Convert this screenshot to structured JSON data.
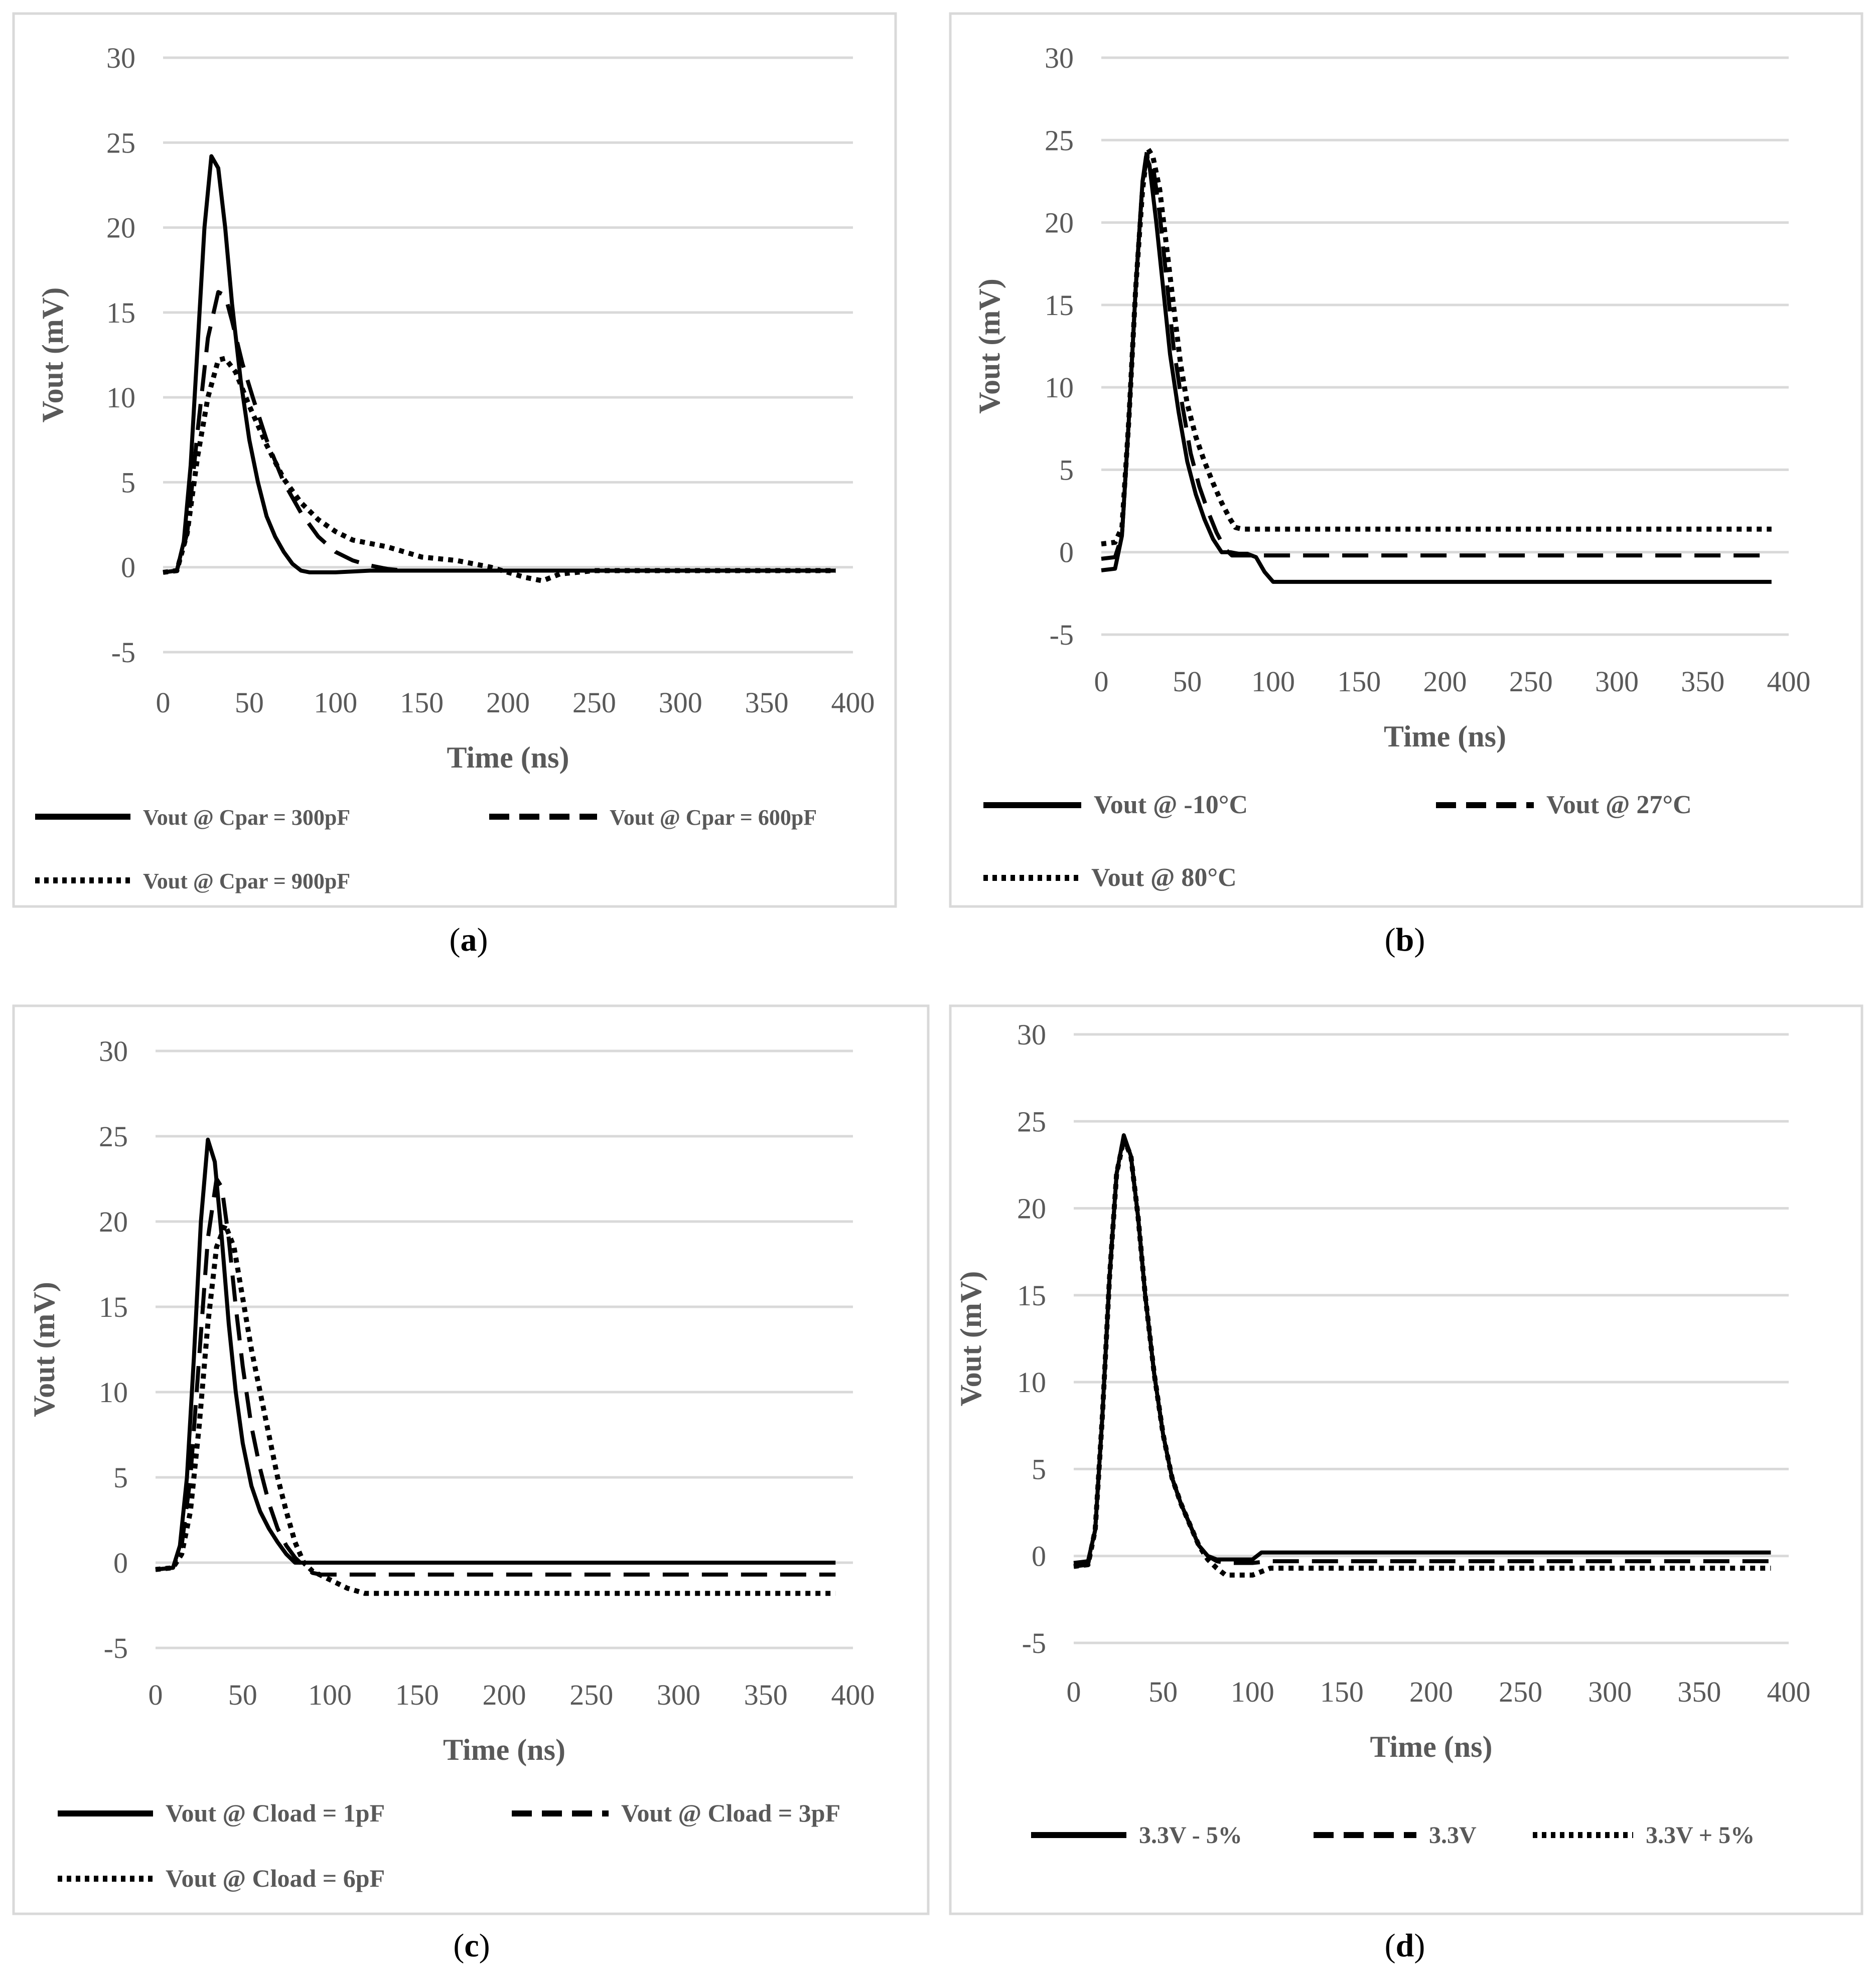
{
  "figure": {
    "panels": [
      {
        "label": "a",
        "label_text": "(a)"
      },
      {
        "label": "b",
        "label_text": "(b)"
      },
      {
        "label": "c",
        "label_text": "(c)"
      },
      {
        "label": "d",
        "label_text": "(d)"
      }
    ]
  },
  "colors": {
    "series": "#000000",
    "grid": "#d9d9d9",
    "axis_text": "#595959",
    "frame": "#d9d9d9",
    "background": "#ffffff"
  },
  "chart_data": [
    {
      "panel": "a",
      "type": "line",
      "xlabel": "Time (ns)",
      "ylabel": "Vout (mV)",
      "xlim": [
        0,
        400
      ],
      "ylim": [
        -5,
        30
      ],
      "xticks": [
        0,
        50,
        100,
        150,
        200,
        250,
        300,
        350,
        400
      ],
      "yticks": [
        -5,
        0,
        5,
        10,
        15,
        20,
        25,
        30
      ],
      "grid": true,
      "legend_position": "bottom",
      "series": [
        {
          "name": "Vout @ Cpar = 300pF",
          "style": "solid",
          "x": [
            0,
            8,
            12,
            16,
            20,
            24,
            28,
            32,
            36,
            40,
            45,
            50,
            55,
            60,
            65,
            70,
            75,
            80,
            85,
            90,
            100,
            120,
            150,
            200,
            250,
            300,
            350,
            390
          ],
          "y": [
            -0.3,
            -0.2,
            1.5,
            6,
            13,
            20,
            24.2,
            23.5,
            20,
            15.5,
            11,
            7.5,
            5,
            3,
            1.8,
            0.9,
            0.2,
            -0.2,
            -0.3,
            -0.3,
            -0.3,
            -0.2,
            -0.2,
            -0.2,
            -0.2,
            -0.2,
            -0.2,
            -0.2
          ]
        },
        {
          "name": "Vout @ Cpar = 600pF",
          "style": "dashed",
          "x": [
            0,
            8,
            14,
            20,
            26,
            32,
            36,
            40,
            46,
            52,
            60,
            70,
            80,
            90,
            100,
            110,
            120,
            130,
            140,
            150,
            170,
            200,
            250,
            300,
            350,
            390
          ],
          "y": [
            -0.3,
            -0.2,
            2,
            8,
            13.5,
            16.2,
            16,
            14.5,
            12,
            10,
            7.5,
            5,
            3.2,
            1.8,
            0.9,
            0.4,
            0.1,
            -0.1,
            -0.2,
            -0.2,
            -0.2,
            -0.2,
            -0.2,
            -0.2,
            -0.2,
            -0.2
          ]
        },
        {
          "name": "Vout @ Cpar = 900pF",
          "style": "dotted",
          "x": [
            0,
            8,
            14,
            20,
            26,
            32,
            36,
            42,
            50,
            60,
            70,
            80,
            90,
            100,
            110,
            120,
            130,
            140,
            150,
            160,
            170,
            180,
            190,
            200,
            210,
            220,
            230,
            250,
            300,
            350,
            390
          ],
          "y": [
            -0.3,
            -0.2,
            2,
            6.5,
            10,
            12.2,
            12.3,
            11.5,
            9.5,
            7.2,
            5.2,
            3.8,
            2.8,
            2.1,
            1.6,
            1.4,
            1.2,
            0.9,
            0.6,
            0.5,
            0.4,
            0.2,
            0,
            -0.3,
            -0.6,
            -0.8,
            -0.4,
            -0.2,
            -0.2,
            -0.2,
            -0.2
          ]
        }
      ]
    },
    {
      "panel": "b",
      "type": "line",
      "xlabel": "Time (ns)",
      "ylabel": "Vout (mV)",
      "xlim": [
        0,
        400
      ],
      "ylim": [
        -5,
        30
      ],
      "xticks": [
        0,
        50,
        100,
        150,
        200,
        250,
        300,
        350,
        400
      ],
      "yticks": [
        -5,
        0,
        5,
        10,
        15,
        20,
        25,
        30
      ],
      "grid": true,
      "legend_position": "bottom",
      "series": [
        {
          "name": "Vout @ -10°C",
          "style": "solid",
          "x": [
            0,
            8,
            12,
            16,
            20,
            24,
            26,
            28,
            32,
            36,
            40,
            45,
            50,
            55,
            60,
            65,
            70,
            75,
            80,
            85,
            90,
            95,
            100,
            130,
            200,
            300,
            390
          ],
          "y": [
            -1.1,
            -1.0,
            1,
            8,
            16,
            22.5,
            24,
            23.5,
            20,
            16,
            12,
            8.5,
            5.5,
            3.5,
            2,
            0.8,
            0,
            0,
            -0.1,
            -0.1,
            -0.3,
            -1.2,
            -1.8,
            -1.8,
            -1.8,
            -1.8,
            -1.8
          ]
        },
        {
          "name": "Vout @ 27°C",
          "style": "dashed",
          "x": [
            0,
            8,
            12,
            16,
            20,
            24,
            27,
            30,
            34,
            38,
            42,
            47,
            52,
            57,
            62,
            67,
            72,
            76,
            80,
            100,
            200,
            300,
            390
          ],
          "y": [
            -0.4,
            -0.3,
            1,
            8,
            16,
            22.5,
            24,
            23.5,
            20.5,
            16.5,
            12.5,
            9,
            6,
            4,
            2.5,
            1.2,
            0.2,
            -0.2,
            -0.2,
            -0.2,
            -0.2,
            -0.2,
            -0.2
          ]
        },
        {
          "name": "Vout @ 80°C",
          "style": "dotted",
          "x": [
            0,
            8,
            12,
            16,
            20,
            24,
            27,
            30,
            34,
            38,
            42,
            46,
            50,
            55,
            60,
            65,
            70,
            75,
            78,
            82,
            100,
            200,
            300,
            390
          ],
          "y": [
            0.5,
            0.6,
            1.5,
            8,
            16,
            22,
            24.5,
            24,
            22,
            18.5,
            15,
            11.5,
            9,
            7,
            5.5,
            4.2,
            3,
            2,
            1.5,
            1.4,
            1.4,
            1.4,
            1.4,
            1.4
          ]
        }
      ]
    },
    {
      "panel": "c",
      "type": "line",
      "xlabel": "Time (ns)",
      "ylabel": "Vout (mV)",
      "xlim": [
        0,
        400
      ],
      "ylim": [
        -5,
        30
      ],
      "xticks": [
        0,
        50,
        100,
        150,
        200,
        250,
        300,
        350,
        400
      ],
      "yticks": [
        -5,
        0,
        5,
        10,
        15,
        20,
        25,
        30
      ],
      "grid": true,
      "legend_position": "bottom",
      "series": [
        {
          "name": "Vout @ Cload = 1pF",
          "style": "solid",
          "x": [
            0,
            10,
            14,
            18,
            22,
            26,
            30,
            34,
            38,
            42,
            46,
            50,
            55,
            60,
            65,
            70,
            75,
            80,
            85,
            100,
            200,
            300,
            390
          ],
          "y": [
            -0.4,
            -0.3,
            1,
            5,
            12,
            20,
            24.8,
            23.5,
            19,
            14,
            10,
            7,
            4.5,
            3,
            2,
            1.2,
            0.5,
            0,
            0,
            0,
            0,
            0,
            0
          ]
        },
        {
          "name": "Vout @ Cload = 3pF",
          "style": "dashed",
          "x": [
            0,
            10,
            15,
            20,
            25,
            30,
            35,
            38,
            42,
            46,
            50,
            55,
            60,
            65,
            70,
            75,
            80,
            85,
            90,
            95,
            100,
            200,
            300,
            390
          ],
          "y": [
            -0.4,
            -0.3,
            1,
            5,
            12,
            19,
            22.5,
            22,
            19,
            15,
            11.5,
            8,
            5.5,
            3.5,
            2,
            1,
            0.3,
            -0.2,
            -0.6,
            -0.7,
            -0.7,
            -0.7,
            -0.7,
            -0.7
          ]
        },
        {
          "name": "Vout @ Cload = 6pF",
          "style": "dotted",
          "x": [
            0,
            10,
            15,
            20,
            25,
            30,
            35,
            40,
            45,
            50,
            55,
            60,
            65,
            70,
            75,
            80,
            85,
            90,
            100,
            110,
            120,
            200,
            300,
            390
          ],
          "y": [
            -0.4,
            -0.3,
            0.5,
            3,
            8,
            14,
            18.5,
            19.8,
            18.5,
            15.5,
            12.5,
            10,
            7.5,
            5,
            3,
            1.2,
            0,
            -0.5,
            -1,
            -1.5,
            -1.8,
            -1.8,
            -1.8,
            -1.8
          ]
        }
      ]
    },
    {
      "panel": "d",
      "type": "line",
      "xlabel": "Time (ns)",
      "ylabel": "Vout (mV)",
      "xlim": [
        0,
        400
      ],
      "ylim": [
        -5,
        30
      ],
      "xticks": [
        0,
        50,
        100,
        150,
        200,
        250,
        300,
        350,
        400
      ],
      "yticks": [
        -5,
        0,
        5,
        10,
        15,
        20,
        25,
        30
      ],
      "grid": true,
      "legend_position": "bottom",
      "series": [
        {
          "name": "3.3V - 5%",
          "style": "solid",
          "x": [
            0,
            8,
            12,
            16,
            20,
            24,
            28,
            32,
            36,
            40,
            45,
            50,
            55,
            60,
            65,
            70,
            75,
            80,
            85,
            100,
            105,
            110,
            200,
            300,
            390
          ],
          "y": [
            -0.4,
            -0.3,
            1.5,
            8,
            16,
            22,
            24.2,
            23,
            19.5,
            15,
            10.5,
            7,
            4.5,
            3,
            1.8,
            0.6,
            0,
            -0.2,
            -0.2,
            -0.2,
            0.2,
            0.2,
            0.2,
            0.2,
            0.2
          ]
        },
        {
          "name": "3.3V",
          "style": "dashed",
          "x": [
            0,
            8,
            12,
            16,
            20,
            24,
            28,
            32,
            36,
            40,
            45,
            50,
            55,
            60,
            65,
            70,
            75,
            80,
            85,
            100,
            110,
            200,
            300,
            390
          ],
          "y": [
            -0.6,
            -0.5,
            1.5,
            8,
            16,
            22,
            24,
            23,
            19.5,
            15,
            10.5,
            7,
            4.5,
            3,
            1.8,
            0.6,
            0,
            -0.3,
            -0.4,
            -0.4,
            -0.3,
            -0.3,
            -0.3,
            -0.3
          ]
        },
        {
          "name": "3.3V + 5%",
          "style": "dotted",
          "x": [
            0,
            8,
            12,
            16,
            20,
            24,
            28,
            32,
            36,
            40,
            45,
            50,
            55,
            60,
            65,
            70,
            75,
            80,
            85,
            100,
            110,
            200,
            300,
            390
          ],
          "y": [
            -0.6,
            -0.5,
            1.5,
            8,
            16,
            22,
            24,
            23,
            19.5,
            15,
            10.5,
            7,
            4.5,
            3,
            1.8,
            0.6,
            -0.2,
            -0.7,
            -1.1,
            -1.1,
            -0.7,
            -0.7,
            -0.7,
            -0.7
          ]
        }
      ]
    }
  ]
}
